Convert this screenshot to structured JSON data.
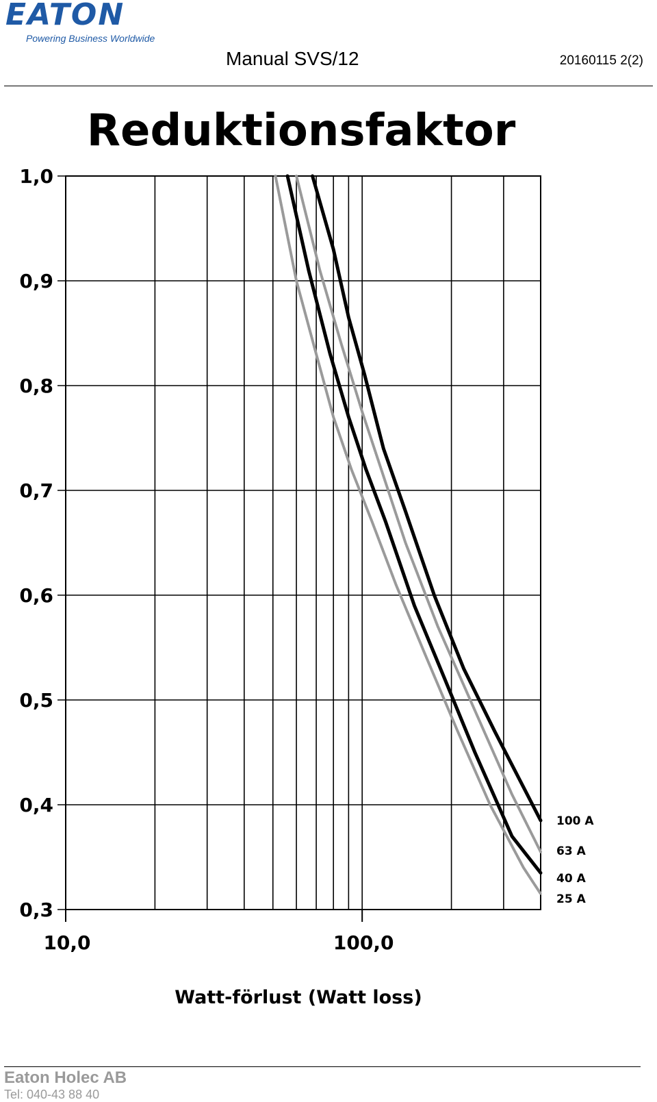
{
  "header": {
    "brand": "EATON",
    "tagline": "Powering Business Worldwide",
    "doc_title": "Manual SVS/12",
    "doc_ref": "20160115 2(2)"
  },
  "footer": {
    "company": "Eaton Holec AB",
    "phone": "Tel: 040-43 88 40"
  },
  "chart_data": {
    "type": "line",
    "title": "Reduktionsfaktor",
    "xlabel": "Watt-förlust (Watt loss)",
    "ylabel": "",
    "xscale": "log",
    "xlim": [
      10,
      400
    ],
    "ylim": [
      0.3,
      1.0
    ],
    "xticks": [
      10,
      100
    ],
    "xtick_labels": [
      "10,0",
      "100,0"
    ],
    "yticks": [
      0.3,
      0.4,
      0.5,
      0.6,
      0.7,
      0.8,
      0.9,
      1.0
    ],
    "ytick_labels": [
      "0,3",
      "0,4",
      "0,5",
      "0,6",
      "0,7",
      "0,8",
      "0,9",
      "1,0"
    ],
    "x_gridlines": [
      10,
      20,
      30,
      40,
      50,
      60,
      70,
      80,
      90,
      100,
      200,
      300,
      400
    ],
    "grid": true,
    "legend": "right, at line ends",
    "series": [
      {
        "name": "100 A",
        "color": "#000000",
        "style": "solid",
        "x": [
          68,
          80,
          90,
          102,
          118,
          140,
          175,
          220,
          280,
          400
        ],
        "y": [
          1.0,
          0.93,
          0.865,
          0.81,
          0.74,
          0.68,
          0.6,
          0.53,
          0.47,
          0.385
        ]
      },
      {
        "name": "63 A",
        "color": "#9a9a9a",
        "style": "dotted",
        "x": [
          60,
          72,
          85,
          100,
          116,
          140,
          180,
          240,
          320,
          400
        ],
        "y": [
          1.0,
          0.91,
          0.84,
          0.775,
          0.72,
          0.65,
          0.57,
          0.49,
          0.41,
          0.355
        ]
      },
      {
        "name": "40 A",
        "color": "#000000",
        "style": "solid",
        "x": [
          56,
          66,
          78,
          90,
          103,
          120,
          150,
          190,
          240,
          320,
          400
        ],
        "y": [
          1.0,
          0.91,
          0.83,
          0.77,
          0.72,
          0.67,
          0.59,
          0.52,
          0.45,
          0.37,
          0.335
        ]
      },
      {
        "name": "25 A",
        "color": "#9a9a9a",
        "style": "dotted",
        "x": [
          51,
          60,
          70,
          80,
          92,
          108,
          130,
          165,
          210,
          270,
          350,
          400
        ],
        "y": [
          1.0,
          0.9,
          0.83,
          0.77,
          0.72,
          0.67,
          0.61,
          0.54,
          0.47,
          0.4,
          0.34,
          0.315
        ]
      }
    ]
  }
}
